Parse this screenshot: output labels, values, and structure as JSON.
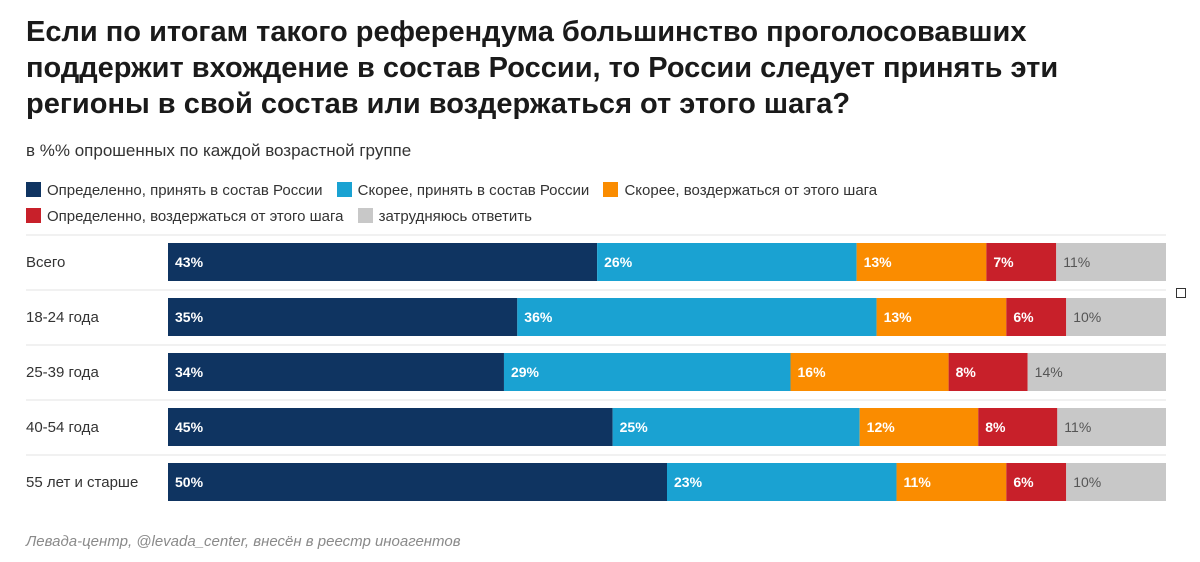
{
  "title": "Если по итогам такого референдума большинство проголосовавших поддержит вхождение в состав России, то России следует принять эти регионы в свой состав или воздержаться от этого шага?",
  "subtitle": "в %% опрошенных по каждой возрастной группе",
  "source": "Левада-центр, @levada_center, внесён в реестр иноагентов",
  "chart_data": {
    "type": "bar",
    "orientation": "horizontal",
    "stacked": true,
    "xlim": [
      0,
      100
    ],
    "categories": [
      "Всего",
      "18-24 года",
      "25-39 года",
      "40-54 года",
      "55 лет и старше"
    ],
    "series": [
      {
        "name": "Определенно, принять в состав России",
        "color": "#0f3461",
        "values": [
          43,
          35,
          34,
          45,
          50
        ]
      },
      {
        "name": "Скорее, принять в состав России",
        "color": "#1aa2d2",
        "values": [
          26,
          36,
          29,
          25,
          23
        ]
      },
      {
        "name": "Скорее, воздержаться от этого шага",
        "color": "#fa8c00",
        "values": [
          13,
          13,
          16,
          12,
          11
        ]
      },
      {
        "name": "Определенно, воздержаться от этого шага",
        "color": "#c8202a",
        "values": [
          7,
          6,
          8,
          8,
          6
        ]
      },
      {
        "name": "затрудняюсь ответить",
        "color": "#c8c8c8",
        "values": [
          11,
          10,
          14,
          11,
          10
        ]
      }
    ],
    "value_suffix": "%",
    "legend_position": "top",
    "grid": false
  }
}
